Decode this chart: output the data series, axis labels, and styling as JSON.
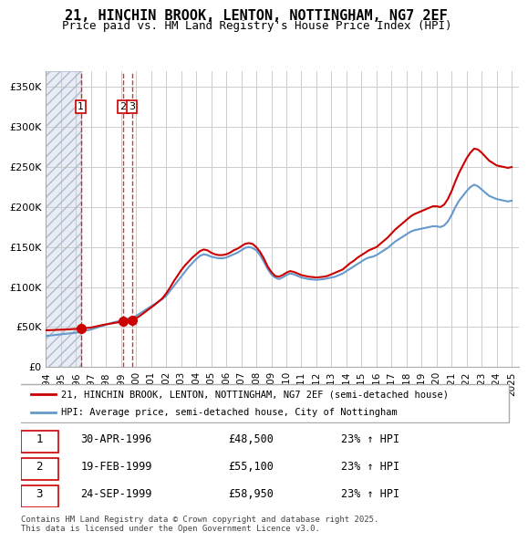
{
  "title": "21, HINCHIN BROOK, LENTON, NOTTINGHAM, NG7 2EF",
  "subtitle": "Price paid vs. HM Land Registry's House Price Index (HPI)",
  "ylabel_ticks": [
    "£0",
    "£50K",
    "£100K",
    "£150K",
    "£200K",
    "£250K",
    "£300K",
    "£350K"
  ],
  "ylim": [
    0,
    370000
  ],
  "xlim_start": 1994.0,
  "xlim_end": 2025.5,
  "legend_line1": "21, HINCHIN BROOK, LENTON, NOTTINGHAM, NG7 2EF (semi-detached house)",
  "legend_line2": "HPI: Average price, semi-detached house, City of Nottingham",
  "transactions": [
    {
      "num": 1,
      "date": "30-APR-1996",
      "price": 48500,
      "pct": "23%",
      "x": 1996.33
    },
    {
      "num": 2,
      "date": "19-FEB-1999",
      "price": 55100,
      "pct": "23%",
      "x": 1999.13
    },
    {
      "num": 3,
      "date": "24-SEP-1999",
      "price": 58950,
      "pct": "23%",
      "x": 1999.73
    }
  ],
  "footer": "Contains HM Land Registry data © Crown copyright and database right 2025.\nThis data is licensed under the Open Government Licence v3.0.",
  "hpi_color": "#6699cc",
  "price_color": "#cc0000",
  "transaction_dot_color": "#cc0000",
  "background_hatch_color": "#d0d8e8",
  "grid_color": "#cccccc",
  "hpi_data_x": [
    1994.0,
    1994.25,
    1994.5,
    1994.75,
    1995.0,
    1995.25,
    1995.5,
    1995.75,
    1996.0,
    1996.25,
    1996.5,
    1996.75,
    1997.0,
    1997.25,
    1997.5,
    1997.75,
    1998.0,
    1998.25,
    1998.5,
    1998.75,
    1999.0,
    1999.25,
    1999.5,
    1999.75,
    2000.0,
    2000.25,
    2000.5,
    2000.75,
    2001.0,
    2001.25,
    2001.5,
    2001.75,
    2002.0,
    2002.25,
    2002.5,
    2002.75,
    2003.0,
    2003.25,
    2003.5,
    2003.75,
    2004.0,
    2004.25,
    2004.5,
    2004.75,
    2005.0,
    2005.25,
    2005.5,
    2005.75,
    2006.0,
    2006.25,
    2006.5,
    2006.75,
    2007.0,
    2007.25,
    2007.5,
    2007.75,
    2008.0,
    2008.25,
    2008.5,
    2008.75,
    2009.0,
    2009.25,
    2009.5,
    2009.75,
    2010.0,
    2010.25,
    2010.5,
    2010.75,
    2011.0,
    2011.25,
    2011.5,
    2011.75,
    2012.0,
    2012.25,
    2012.5,
    2012.75,
    2013.0,
    2013.25,
    2013.5,
    2013.75,
    2014.0,
    2014.25,
    2014.5,
    2014.75,
    2015.0,
    2015.25,
    2015.5,
    2015.75,
    2016.0,
    2016.25,
    2016.5,
    2016.75,
    2017.0,
    2017.25,
    2017.5,
    2017.75,
    2018.0,
    2018.25,
    2018.5,
    2018.75,
    2019.0,
    2019.25,
    2019.5,
    2019.75,
    2020.0,
    2020.25,
    2020.5,
    2020.75,
    2021.0,
    2021.25,
    2021.5,
    2021.75,
    2022.0,
    2022.25,
    2022.5,
    2022.75,
    2023.0,
    2023.25,
    2023.5,
    2023.75,
    2024.0,
    2024.25,
    2024.5,
    2024.75,
    2025.0
  ],
  "hpi_data_y": [
    39000,
    39500,
    40000,
    40500,
    41000,
    41500,
    42000,
    42500,
    43000,
    44000,
    45000,
    46000,
    47000,
    48500,
    50000,
    51500,
    53000,
    54500,
    56000,
    57000,
    58000,
    59000,
    60500,
    62000,
    64000,
    67000,
    70000,
    73000,
    76000,
    79000,
    82000,
    85000,
    89000,
    95000,
    101000,
    107000,
    113000,
    119000,
    125000,
    130000,
    135000,
    139000,
    141000,
    140000,
    138000,
    137000,
    136000,
    136000,
    137000,
    139000,
    141000,
    143000,
    146000,
    149000,
    150000,
    149000,
    146000,
    140000,
    132000,
    123000,
    116000,
    112000,
    110000,
    112000,
    115000,
    117000,
    116000,
    114000,
    112000,
    111000,
    110000,
    109500,
    109000,
    109500,
    110000,
    111000,
    112000,
    113000,
    115000,
    117000,
    120000,
    123000,
    126000,
    129000,
    132000,
    135000,
    137000,
    138000,
    140000,
    143000,
    146000,
    149000,
    153000,
    157000,
    160000,
    163000,
    166000,
    169000,
    171000,
    172000,
    173000,
    174000,
    175000,
    176000,
    176000,
    175000,
    177000,
    182000,
    190000,
    200000,
    208000,
    214000,
    220000,
    225000,
    228000,
    226000,
    222000,
    218000,
    214000,
    212000,
    210000,
    209000,
    208000,
    207000,
    208000
  ],
  "price_data_x": [
    1994.0,
    1994.25,
    1994.5,
    1994.75,
    1995.0,
    1995.25,
    1995.5,
    1995.75,
    1996.0,
    1996.25,
    1996.5,
    1996.75,
    1997.0,
    1997.25,
    1997.5,
    1997.75,
    1998.0,
    1998.25,
    1998.5,
    1998.75,
    1999.0,
    1999.25,
    1999.5,
    1999.75,
    2000.0,
    2000.25,
    2000.5,
    2000.75,
    2001.0,
    2001.25,
    2001.5,
    2001.75,
    2002.0,
    2002.25,
    2002.5,
    2002.75,
    2003.0,
    2003.25,
    2003.5,
    2003.75,
    2004.0,
    2004.25,
    2004.5,
    2004.75,
    2005.0,
    2005.25,
    2005.5,
    2005.75,
    2006.0,
    2006.25,
    2006.5,
    2006.75,
    2007.0,
    2007.25,
    2007.5,
    2007.75,
    2008.0,
    2008.25,
    2008.5,
    2008.75,
    2009.0,
    2009.25,
    2009.5,
    2009.75,
    2010.0,
    2010.25,
    2010.5,
    2010.75,
    2011.0,
    2011.25,
    2011.5,
    2011.75,
    2012.0,
    2012.25,
    2012.5,
    2012.75,
    2013.0,
    2013.25,
    2013.5,
    2013.75,
    2014.0,
    2014.25,
    2014.5,
    2014.75,
    2015.0,
    2015.25,
    2015.5,
    2015.75,
    2016.0,
    2016.25,
    2016.5,
    2016.75,
    2017.0,
    2017.25,
    2017.5,
    2017.75,
    2018.0,
    2018.25,
    2018.5,
    2018.75,
    2019.0,
    2019.25,
    2019.5,
    2019.75,
    2020.0,
    2020.25,
    2020.5,
    2020.75,
    2021.0,
    2021.25,
    2021.5,
    2021.75,
    2022.0,
    2022.25,
    2022.5,
    2022.75,
    2023.0,
    2023.25,
    2023.5,
    2023.75,
    2024.0,
    2024.25,
    2024.5,
    2024.75,
    2025.0
  ],
  "price_data_y": [
    46000,
    46200,
    46400,
    46600,
    46800,
    47000,
    47200,
    47500,
    47800,
    48200,
    48500,
    49000,
    49500,
    50500,
    51500,
    52500,
    53500,
    54200,
    55000,
    55800,
    56500,
    57000,
    58000,
    59000,
    61000,
    64000,
    67500,
    71000,
    74500,
    78000,
    82000,
    86000,
    92000,
    99000,
    107000,
    114000,
    121000,
    127000,
    132000,
    137000,
    141000,
    145000,
    147000,
    146000,
    143000,
    141000,
    140000,
    140000,
    141000,
    143000,
    146000,
    148000,
    151000,
    154000,
    155000,
    154000,
    150000,
    144000,
    136000,
    126000,
    119000,
    114000,
    113000,
    115000,
    118000,
    120000,
    119000,
    117000,
    115000,
    114000,
    113000,
    112500,
    112000,
    112500,
    113000,
    114000,
    116000,
    118000,
    120000,
    122000,
    126000,
    130000,
    133000,
    137000,
    140000,
    143000,
    146000,
    148000,
    150000,
    154000,
    158000,
    162000,
    167000,
    172000,
    176000,
    180000,
    184000,
    188000,
    191000,
    193000,
    195000,
    197000,
    199000,
    201000,
    201000,
    200000,
    203000,
    210000,
    220000,
    232000,
    243000,
    252000,
    261000,
    268000,
    273000,
    272000,
    268000,
    263000,
    258000,
    255000,
    252000,
    251000,
    250000,
    249000,
    250000
  ]
}
